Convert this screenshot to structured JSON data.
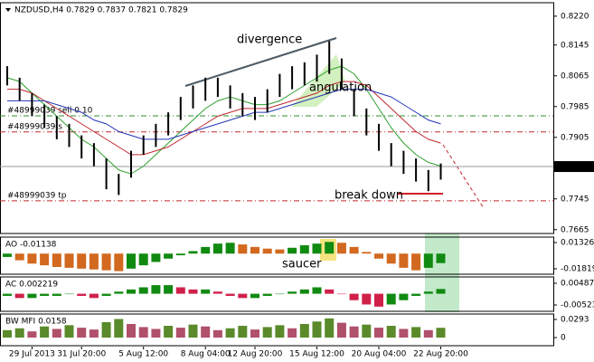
{
  "chart_data": [
    {
      "type": "ohlc",
      "title": "NZDUSD,H4 0.7829 0.7837 0.7821 0.7829",
      "categories": [
        null,
        null,
        "29 Jul 2013",
        null,
        null,
        null,
        "31 Jul 20:00",
        null,
        null,
        null,
        null,
        "5 Aug 12:00",
        null,
        null,
        null,
        null,
        "8 Aug 04:00",
        null,
        null,
        null,
        "12 Aug 20:00",
        null,
        null,
        null,
        null,
        "15 Aug 12:00",
        null,
        null,
        null,
        null,
        "20 Aug 04:00",
        null,
        null,
        null,
        null,
        "22 Aug 20:00"
      ],
      "high": [
        0.809,
        0.806,
        0.802,
        0.799,
        0.796,
        0.794,
        0.791,
        0.789,
        0.785,
        0.781,
        0.787,
        0.791,
        0.794,
        0.797,
        0.801,
        0.804,
        0.806,
        0.806,
        0.804,
        0.802,
        0.801,
        0.803,
        0.807,
        0.809,
        0.81,
        0.812,
        0.8155,
        0.811,
        0.803,
        0.798,
        0.794,
        0.789,
        0.787,
        0.785,
        0.782,
        0.7837
      ],
      "low": [
        0.804,
        0.8,
        0.796,
        0.793,
        0.79,
        0.788,
        0.785,
        0.783,
        0.777,
        0.7755,
        0.78,
        0.786,
        0.788,
        0.791,
        0.795,
        0.798,
        0.8,
        0.801,
        0.798,
        0.796,
        0.795,
        0.797,
        0.801,
        0.803,
        0.804,
        0.805,
        0.807,
        0.803,
        0.796,
        0.791,
        0.787,
        0.783,
        0.781,
        0.779,
        0.7765,
        0.7795
      ],
      "color": "#000000",
      "series": [
        {
          "color": "#2ea02e",
          "values": [
            0.806,
            0.805,
            0.802,
            0.799,
            0.796,
            0.793,
            0.79,
            0.788,
            0.785,
            0.782,
            0.781,
            0.783,
            0.786,
            0.789,
            0.792,
            0.795,
            0.798,
            0.8,
            0.801,
            0.8,
            0.799,
            0.799,
            0.8,
            0.802,
            0.804,
            0.806,
            0.808,
            0.809,
            0.807,
            0.803,
            0.798,
            0.793,
            0.789,
            0.786,
            0.784,
            0.783
          ]
        },
        {
          "color": "#c0282d",
          "values": [
            0.803,
            0.803,
            0.802,
            0.8,
            0.798,
            0.796,
            0.794,
            0.792,
            0.79,
            0.788,
            0.786,
            0.786,
            0.787,
            0.788,
            0.79,
            0.792,
            0.794,
            0.796,
            0.797,
            0.798,
            0.798,
            0.798,
            0.799,
            0.8,
            0.801,
            0.802,
            0.804,
            0.805,
            0.805,
            0.804,
            0.801,
            0.798,
            0.795,
            0.792,
            0.79,
            0.789
          ]
        },
        {
          "color": "#2636b8",
          "values": [
            0.8,
            0.8,
            0.8,
            0.8,
            0.799,
            0.798,
            0.797,
            0.795,
            0.794,
            0.792,
            0.791,
            0.79,
            0.79,
            0.79,
            0.791,
            0.792,
            0.793,
            0.794,
            0.795,
            0.796,
            0.797,
            0.797,
            0.798,
            0.799,
            0.8,
            0.801,
            0.802,
            0.803,
            0.803,
            0.803,
            0.802,
            0.801,
            0.799,
            0.797,
            0.795,
            0.794
          ]
        }
      ],
      "last_price": 0.7829,
      "levels": [
        {
          "label": "#48999039 sell 0.10",
          "value": 0.7961,
          "color": "#2e8b2e"
        },
        {
          "label": "#48999039 s",
          "value": 0.7919,
          "color": "#c0282d"
        },
        {
          "label": "#48999039 tp",
          "value": 0.774,
          "color": "#c0282d"
        }
      ],
      "annotations": [
        {
          "text": "divergence",
          "color": "#3d5566"
        },
        {
          "text": "angulation",
          "color": "#2ea02e"
        },
        {
          "text": "break down",
          "color": "#d0202a"
        }
      ],
      "ylim": [
        0.7655,
        0.8255
      ],
      "yticks": [
        {
          "value": 0.822,
          "label": "0.8220"
        },
        0.8145,
        0.8065,
        0.7985,
        0.7905,
        0.7745,
        0.7665
      ]
    },
    {
      "type": "bar",
      "title": "AO -0.01138",
      "values": [
        -0.004,
        -0.008,
        -0.012,
        -0.014,
        -0.016,
        -0.017,
        -0.018,
        -0.019,
        -0.02,
        -0.021,
        -0.018,
        -0.014,
        -0.01,
        -0.006,
        -0.002,
        0.003,
        0.008,
        0.012,
        0.013,
        0.011,
        0.008,
        0.006,
        0.005,
        0.007,
        0.01,
        0.012,
        0.014,
        0.013,
        0.008,
        0.002,
        -0.006,
        -0.012,
        -0.017,
        -0.02,
        -0.017,
        -0.01138
      ],
      "up_color": "#118a11",
      "down_color": "#d2691e",
      "annotations": [
        {
          "text": "saucer",
          "color": "#8a8a2a"
        }
      ],
      "ylim": [
        -0.0247,
        0.0198
      ],
      "yticks": [
        0.01326,
        -0.01819
      ]
    },
    {
      "type": "bar",
      "title": "AC 0.002219",
      "values": [
        -0.001,
        -0.002,
        -0.002,
        -0.001,
        -0.001,
        0,
        -0.001,
        -0.002,
        -0.001,
        0.001,
        0.002,
        0.003,
        0.004,
        0.004,
        0.003,
        0.002,
        0.002,
        0.001,
        -0.001,
        -0.002,
        -0.002,
        -0.001,
        0,
        0.001,
        0.002,
        0.003,
        0.002,
        0,
        -0.003,
        -0.005,
        -0.006,
        -0.005,
        -0.003,
        -0.001,
        0.001,
        0.002219
      ],
      "up_color": "#118a11",
      "down_color": "#d0204a",
      "ylim": [
        -0.00818,
        0.00783
      ],
      "yticks": [
        0.004877,
        -0.00523
      ]
    },
    {
      "type": "bar",
      "title": "BW MFI 0.0158",
      "values": [
        0.012,
        0.015,
        0.01,
        0.018,
        0.014,
        0.02,
        0.016,
        0.013,
        0.025,
        0.03,
        0.022,
        0.017,
        0.014,
        0.019,
        0.016,
        0.021,
        0.018,
        0.012,
        0.015,
        0.019,
        0.013,
        0.017,
        0.02,
        0.015,
        0.022,
        0.026,
        0.031,
        0.024,
        0.018,
        0.021,
        0.016,
        0.019,
        0.014,
        0.017,
        0.012,
        0.0158
      ],
      "up_color": "#5a8a2a",
      "down_color": "#b0506a",
      "ylim": [
        -0.0132,
        0.0381
      ],
      "yticks": [
        0.0293,
        0
      ]
    }
  ]
}
